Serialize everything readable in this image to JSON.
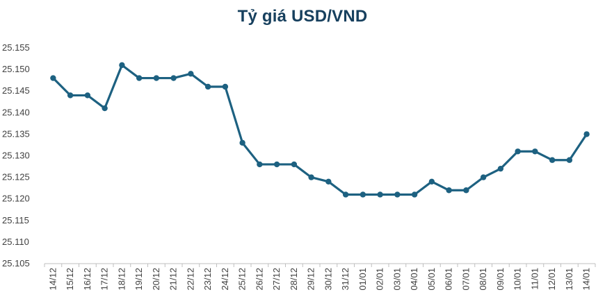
{
  "chart_data": {
    "type": "line",
    "title": "Tỷ giá USD/VND",
    "xlabel": "",
    "ylabel": "",
    "grid": false,
    "legend": "none",
    "ylim": [
      25.105,
      25.155
    ],
    "yticks": [
      "25.155",
      "25.150",
      "25.145",
      "25.140",
      "25.135",
      "25.130",
      "25.125",
      "25.120",
      "25.115",
      "25.110",
      "25.105"
    ],
    "categories": [
      "14/12",
      "15/12",
      "16/12",
      "17/12",
      "18/12",
      "19/12",
      "20/12",
      "21/12",
      "22/12",
      "23/12",
      "24/12",
      "25/12",
      "26/12",
      "27/12",
      "28/12",
      "29/12",
      "30/12",
      "31/12",
      "01/01",
      "02/01",
      "03/01",
      "04/01",
      "05/01",
      "06/01",
      "07/01",
      "08/01",
      "09/01",
      "10/01",
      "11/01",
      "12/01",
      "13/01",
      "14/01"
    ],
    "series": [
      {
        "color": "#1d6181",
        "values": [
          25.148,
          25.144,
          25.144,
          25.141,
          25.151,
          25.148,
          25.148,
          25.148,
          25.149,
          25.146,
          25.146,
          25.133,
          25.128,
          25.128,
          25.128,
          25.125,
          25.124,
          25.121,
          25.121,
          25.121,
          25.121,
          25.121,
          25.124,
          25.122,
          25.122,
          25.125,
          25.127,
          25.131,
          25.131,
          25.129,
          25.129,
          25.135
        ]
      }
    ]
  }
}
